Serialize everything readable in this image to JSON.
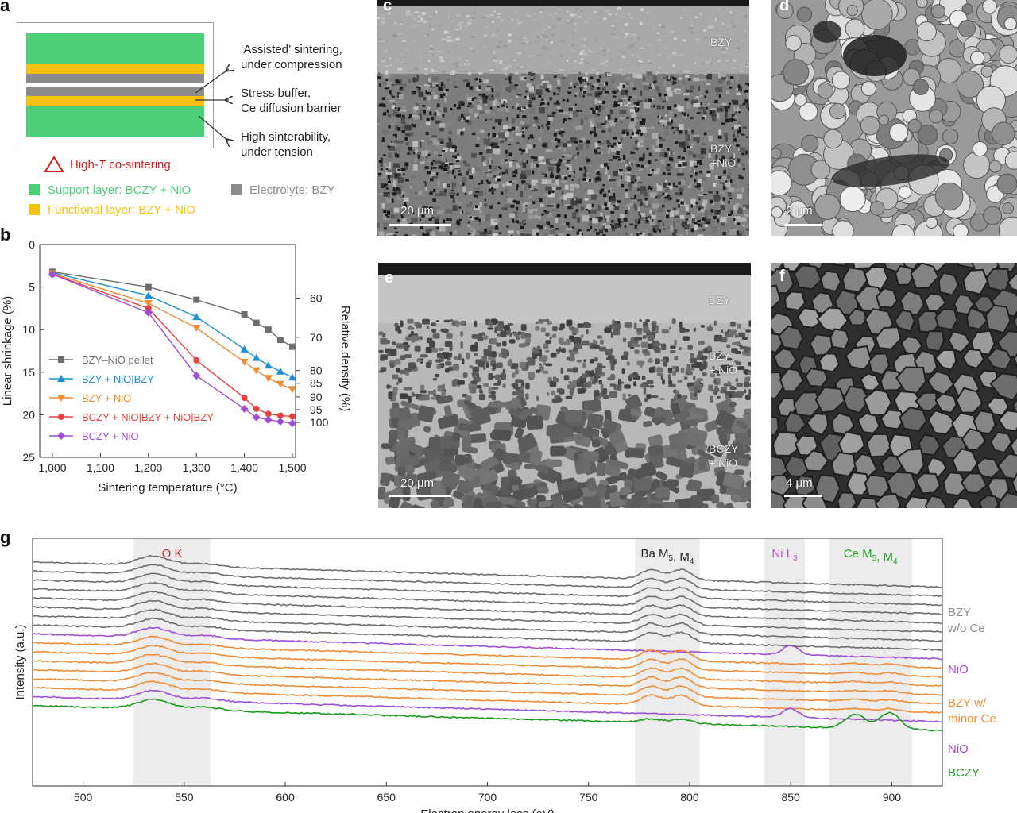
{
  "panel_a": {
    "label": "a",
    "annotations": [
      [
        "‘Assisted’ sintering,",
        "under compression"
      ],
      [
        "Stress buffer,",
        "Ce diffusion barrier"
      ],
      [
        "High sinterability,",
        "under tension"
      ]
    ],
    "cosinter_prefix": "High-",
    "cosinter_T": "T",
    "cosinter_suffix": " co-sintering",
    "legend": {
      "support": "Support layer: BCZY + NiO",
      "functional": "Functional layer: BZY + NiO",
      "electrolyte": "Electrolyte: BZY"
    },
    "colors": {
      "support": "#4ccf78",
      "functional": "#f6c10b",
      "electrolyte": "#8c8c8c",
      "warning": "#d21f1f"
    }
  },
  "panel_b": {
    "label": "b"
  },
  "panel_c": {
    "label": "c",
    "layers": [
      "BZY",
      [
        "BZY",
        "+NiO"
      ]
    ],
    "scale": "20 μm"
  },
  "panel_d": {
    "label": "d",
    "scale": "2 μm"
  },
  "panel_e": {
    "label": "e",
    "layers": [
      "BZY",
      [
        "BZY",
        "+ NiO"
      ],
      [
        "BCZY",
        "+ NiO"
      ]
    ],
    "scale": "20 μm"
  },
  "panel_f": {
    "label": "f",
    "scale": "4 μm"
  },
  "panel_g": {
    "label": "g"
  },
  "chart_data": [
    {
      "type": "line",
      "xlabel": "Sintering temperature (°C)",
      "ylabel": "Linear shrinkage (%)",
      "y2label": "Relative density (%)",
      "x_ticks": [
        "1,000",
        "1,100",
        "1,200",
        "1,300",
        "1,400",
        "1,500"
      ],
      "y_ticks": [
        "0",
        "5",
        "10",
        "15",
        "20",
        "25"
      ],
      "y2_ticks": [
        "60",
        "70",
        "80",
        "85",
        "90",
        "95",
        "100"
      ],
      "y2_tick_positions": [
        6.3,
        10.9,
        14.8,
        16.3,
        17.9,
        19.4,
        20.9
      ],
      "xlim": [
        1000,
        1500
      ],
      "ylim": [
        0,
        25
      ],
      "y_inverted": true,
      "legend_position": "center-left",
      "series": [
        {
          "name": "BZY–NiO pellet",
          "color": "#6d6d6d",
          "marker": "square",
          "x": [
            1000,
            1200,
            1300,
            1400,
            1425,
            1450,
            1475,
            1500
          ],
          "y": [
            3.2,
            5.0,
            6.5,
            8.2,
            9.2,
            10.0,
            11.2,
            12.0
          ]
        },
        {
          "name": "BZY + NiO|BZY",
          "color": "#1f8fd8",
          "marker": "triangle-up",
          "x": [
            1000,
            1200,
            1300,
            1400,
            1425,
            1450,
            1475,
            1500
          ],
          "y": [
            3.3,
            6.0,
            8.5,
            12.3,
            13.3,
            14.2,
            14.9,
            15.6
          ]
        },
        {
          "name": "BZY + NiO",
          "color": "#f08c35",
          "marker": "triangle-down",
          "x": [
            1000,
            1200,
            1300,
            1400,
            1425,
            1450,
            1475,
            1500
          ],
          "y": [
            3.4,
            6.9,
            9.8,
            13.8,
            14.8,
            15.7,
            16.4,
            17.0
          ]
        },
        {
          "name": "BCZY + NiO|BZY + NiO|BZY",
          "color": "#e8413f",
          "marker": "circle",
          "x": [
            1000,
            1200,
            1300,
            1400,
            1425,
            1450,
            1475,
            1500
          ],
          "y": [
            3.5,
            7.5,
            13.6,
            18.0,
            19.3,
            19.9,
            20.1,
            20.2
          ]
        },
        {
          "name": "BCZY + NiO",
          "color": "#a04ed6",
          "marker": "diamond",
          "x": [
            1000,
            1200,
            1300,
            1400,
            1425,
            1450,
            1475,
            1500
          ],
          "y": [
            3.5,
            8.0,
            15.4,
            19.3,
            20.3,
            20.6,
            20.8,
            21.0
          ]
        }
      ]
    },
    {
      "type": "line",
      "xlabel": "Electron energy loss (eV)",
      "ylabel": "Intensity (a.u.)",
      "x_ticks": [
        "500",
        "550",
        "600",
        "650",
        "700",
        "750",
        "800",
        "850",
        "900"
      ],
      "xlim": [
        475,
        925
      ],
      "regions": [
        {
          "label": "O K",
          "range": [
            525,
            563
          ],
          "color": "#c03030"
        },
        {
          "label": "Ba M5, M4",
          "label_html": "Ba M<sub>5</sub>, M<sub>4</sub>",
          "range": [
            773,
            805
          ],
          "color": "#222222"
        },
        {
          "label": "Ni L3",
          "label_html": "Ni L<sub>3</sub>",
          "range": [
            837,
            857
          ],
          "color": "#b45ad8"
        },
        {
          "label": "Ce M5, M4",
          "label_html": "Ce M<sub>5</sub>, M<sub>4</sub>",
          "range": [
            869,
            910
          ],
          "color": "#22aa22"
        }
      ],
      "group_labels": [
        {
          "text": [
            "BZY",
            "w/o Ce"
          ],
          "color": "#8c8c8c"
        },
        {
          "text": [
            "NiO"
          ],
          "color": "#a04ed6"
        },
        {
          "text": [
            "BZY w/",
            "minor Ce"
          ],
          "color": "#f08c35"
        },
        {
          "text": [
            "NiO"
          ],
          "color": "#a04ed6"
        },
        {
          "text": [
            "BCZY"
          ],
          "color": "#1a9a1a"
        }
      ],
      "spectra": [
        {
          "group": "BZY w/o Ce",
          "color": "#6e6e6e",
          "count": 8,
          "ba": 1,
          "ni": 0,
          "ce": 0,
          "o": 1
        },
        {
          "group": "NiO",
          "color": "#a04ed6",
          "count": 1,
          "ba": 0,
          "ni": 1,
          "ce": 0,
          "o": 1
        },
        {
          "group": "BZY w/ minor Ce",
          "color": "#f08c35",
          "count": 6,
          "ba": 1,
          "ni": 0,
          "ce": 0.25,
          "o": 1
        },
        {
          "group": "NiO",
          "color": "#a04ed6",
          "count": 1,
          "ba": 0,
          "ni": 1,
          "ce": 0,
          "o": 1
        },
        {
          "group": "BCZY",
          "color": "#1a9a1a",
          "count": 1,
          "ba": 0.4,
          "ni": 0,
          "ce": 1.6,
          "o": 1
        }
      ]
    }
  ]
}
